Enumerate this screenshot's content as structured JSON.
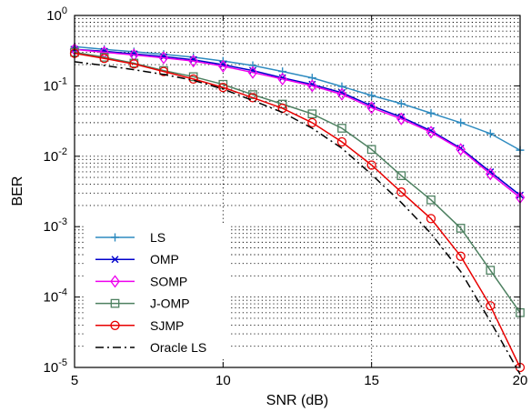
{
  "chart_data": {
    "type": "line",
    "title": "",
    "xlabel": "SNR (dB)",
    "ylabel": "BER",
    "xlim": [
      5,
      20
    ],
    "ylim": [
      1e-05,
      1
    ],
    "yscale": "log",
    "grid": true,
    "legend_position": "bottom-left",
    "x_ticks": [
      "5",
      "10",
      "15",
      "20"
    ],
    "y_ticks": [
      {
        "base": "10",
        "exp": "-5"
      },
      {
        "base": "10",
        "exp": "-4"
      },
      {
        "base": "10",
        "exp": "-3"
      },
      {
        "base": "10",
        "exp": "-2"
      },
      {
        "base": "10",
        "exp": "-1"
      },
      {
        "base": "10",
        "exp": "0"
      }
    ],
    "x": [
      5,
      6,
      7,
      8,
      9,
      10,
      11,
      12,
      13,
      14,
      15,
      16,
      17,
      18,
      19,
      20
    ],
    "series": [
      {
        "name": "LS",
        "color": "#2e8bc0",
        "marker": "plus",
        "dash": "solid",
        "values": [
          0.36,
          0.33,
          0.305,
          0.28,
          0.255,
          0.225,
          0.195,
          0.16,
          0.13,
          0.098,
          0.073,
          0.056,
          0.041,
          0.03,
          0.021,
          0.0122
        ]
      },
      {
        "name": "OMP",
        "color": "#0000cc",
        "marker": "x",
        "dash": "solid",
        "values": [
          0.33,
          0.31,
          0.285,
          0.26,
          0.235,
          0.2,
          0.165,
          0.13,
          0.105,
          0.08,
          0.052,
          0.036,
          0.023,
          0.013,
          0.006,
          0.0028
        ]
      },
      {
        "name": "SOMP",
        "color": "#ee00ee",
        "marker": "diamond",
        "dash": "solid",
        "values": [
          0.33,
          0.3,
          0.275,
          0.25,
          0.225,
          0.19,
          0.155,
          0.125,
          0.1,
          0.076,
          0.049,
          0.034,
          0.022,
          0.0125,
          0.0056,
          0.0026
        ]
      },
      {
        "name": "J-OMP",
        "color": "#4d8060",
        "marker": "square",
        "dash": "solid",
        "values": [
          0.3,
          0.255,
          0.21,
          0.165,
          0.135,
          0.105,
          0.075,
          0.055,
          0.04,
          0.025,
          0.0125,
          0.0053,
          0.0024,
          0.00095,
          0.00024,
          6e-05
        ]
      },
      {
        "name": "SJMP",
        "color": "#e80000",
        "marker": "circle",
        "dash": "solid",
        "values": [
          0.29,
          0.245,
          0.205,
          0.16,
          0.125,
          0.095,
          0.068,
          0.048,
          0.03,
          0.016,
          0.0075,
          0.0031,
          0.0013,
          0.00038,
          7.5e-05,
          1e-05
        ]
      },
      {
        "name": "Oracle LS",
        "color": "#000000",
        "marker": "none",
        "dash": "dashdot",
        "values": [
          0.22,
          0.195,
          0.17,
          0.145,
          0.12,
          0.09,
          0.062,
          0.042,
          0.025,
          0.013,
          0.0055,
          0.0022,
          0.0008,
          0.00023,
          4.5e-05,
          8e-06
        ]
      }
    ]
  }
}
